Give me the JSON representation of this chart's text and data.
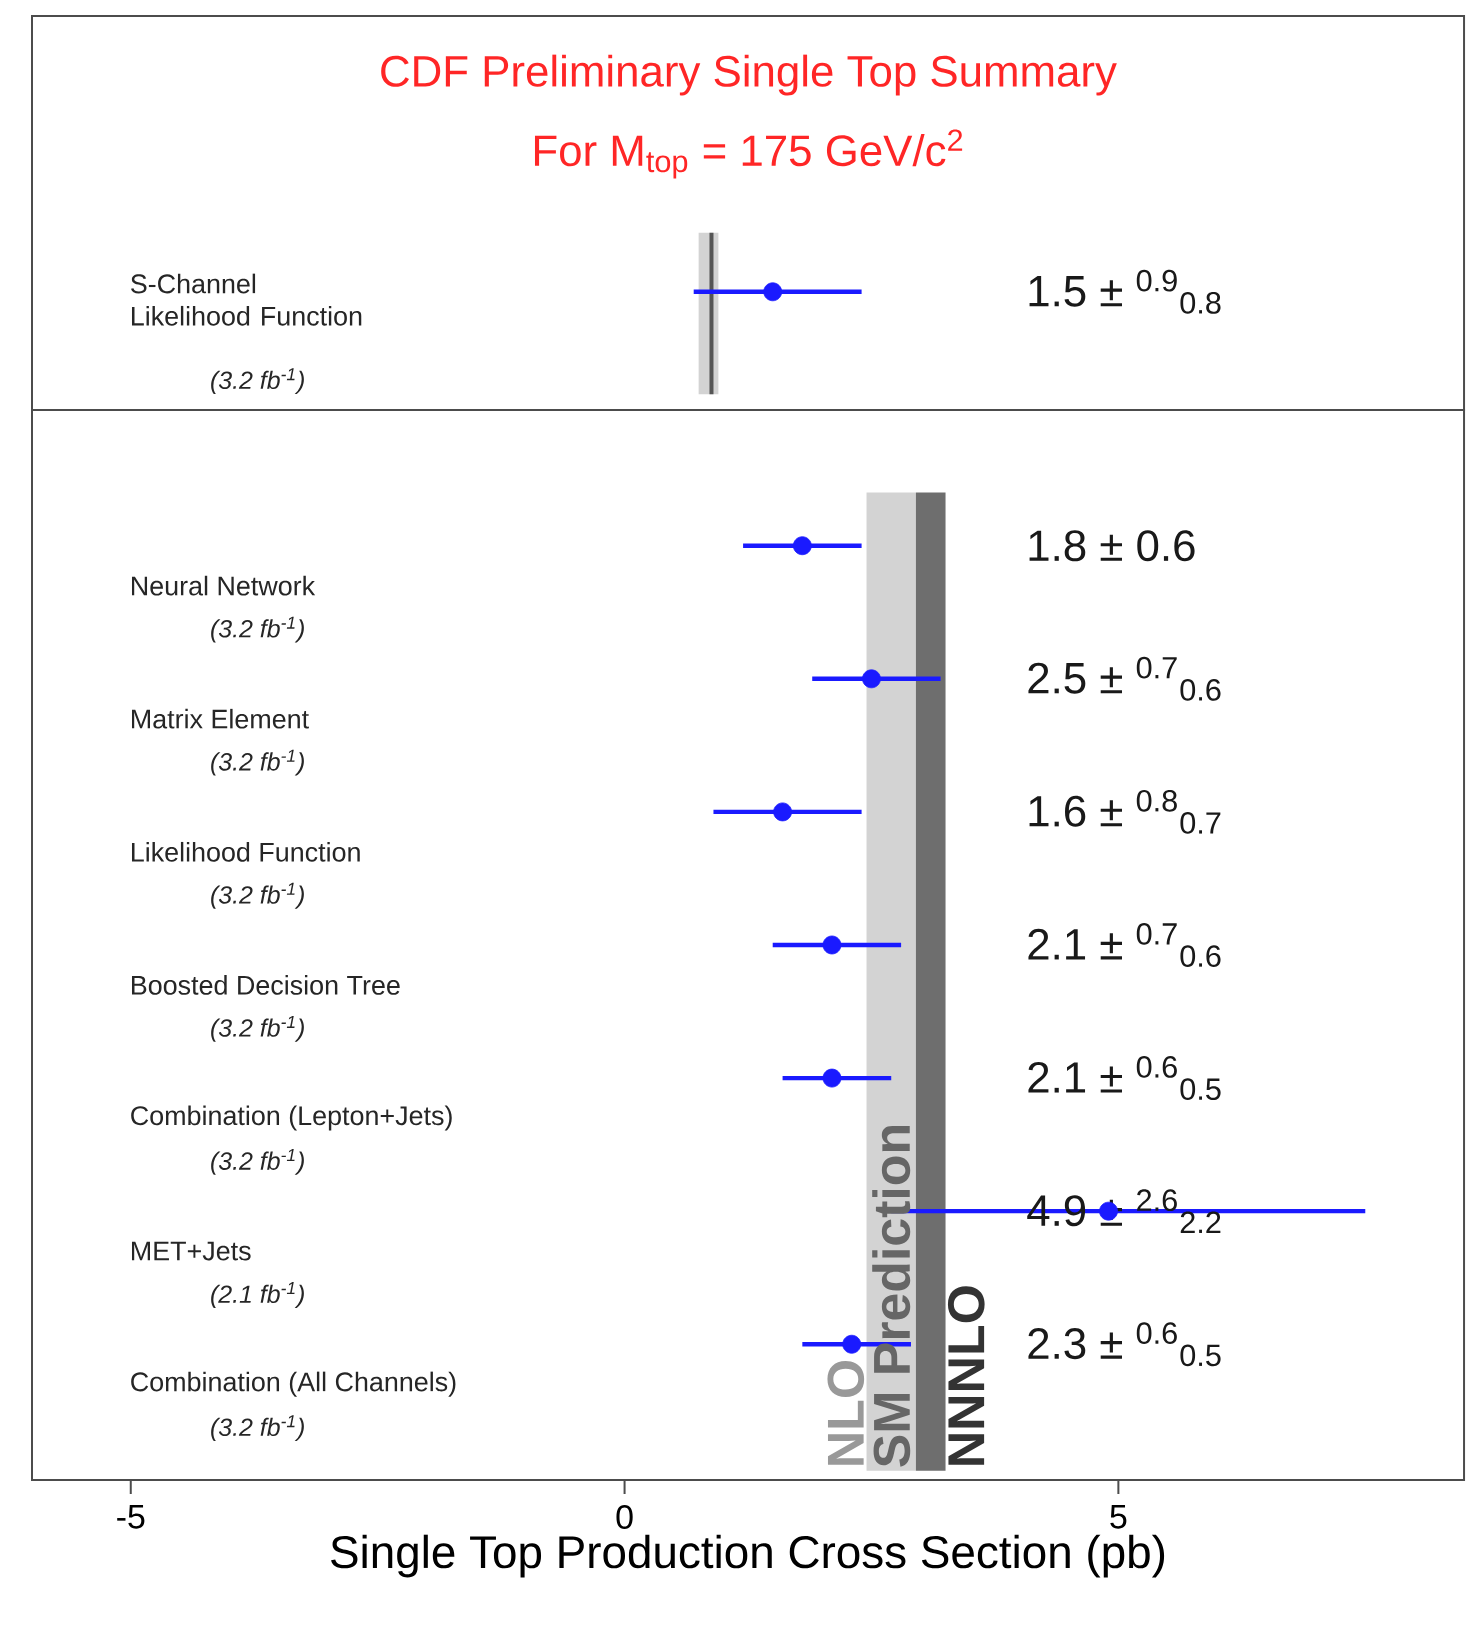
{
  "chart_data": [
    {
      "type": "scatter",
      "orientation": "horizontal",
      "title": "CDF Preliminary Single Top Summary",
      "subtitle": "For M$_{top}$ = 175 GeV/c$^{2}$",
      "categories": [
        "S-Channel Likelihood Function"
      ],
      "values": [
        1.5
      ],
      "errors": [
        [
          0.7,
          2.4
        ]
      ],
      "color": "#1a1aff",
      "marker": "circle",
      "annotations": [
        "(3.2 fb$^{-1}$)",
        "1.5 ± $^{0.9}$$_{0.8}$"
      ],
      "bands": [
        {
          "axis": "x",
          "from": 0.75,
          "to": 0.95,
          "color": "#d3d3d3"
        }
      ],
      "ref_lines": [
        {
          "axis": "x",
          "value": 0.88,
          "color": "#555555"
        }
      ],
      "xlim": [
        -6,
        8.5
      ],
      "tick_labels": false
    },
    {
      "type": "scatter",
      "orientation": "horizontal",
      "xlabel": "Single Top Production Cross Section (pb)",
      "categories": [
        "Neural Network",
        "Matrix Element",
        "Likelihood Function",
        "Boosted Decision Tree",
        "Combination (Lepton+Jets)",
        "MET+Jets",
        "Combination (All Channels)"
      ],
      "values": [
        1.8,
        2.5,
        1.6,
        2.1,
        2.1,
        4.9,
        2.3
      ],
      "errors": [
        [
          1.2,
          2.4
        ],
        [
          1.9,
          3.2
        ],
        [
          0.9,
          2.4
        ],
        [
          1.5,
          2.8
        ],
        [
          1.6,
          2.7
        ],
        [
          2.7,
          7.5
        ],
        [
          1.8,
          2.9
        ]
      ],
      "color": "#1a1aff",
      "marker": "circle",
      "annotations": [
        "(3.2 fb$^{-1}$)",
        "(3.2 fb$^{-1}$)",
        "(3.2 fb$^{-1}$)",
        "(3.2 fb$^{-1}$)",
        "(3.2 fb$^{-1}$)",
        "(2.1 fb$^{-1}$)",
        "(3.2 fb$^{-1}$)",
        "1.8 ± 0.6",
        "2.5 ± $^{0.7}$$_{0.6}$",
        "1.6 ± $^{0.8}$$_{0.7}$",
        "2.1 ± $^{0.7}$$_{0.6}$",
        "2.1 ± $^{0.6}$$_{0.5}$",
        "4.9 ± $^{2.6}$$_{2.2}$",
        "2.3 ± $^{0.6}$$_{0.5}$",
        "SM Prediction"
      ],
      "bands": [
        {
          "axis": "x",
          "from": 2.45,
          "to": 2.95,
          "label": "NLO",
          "color": "#d3d3d3"
        },
        {
          "axis": "x",
          "from": 2.95,
          "to": 3.25,
          "label": "NNNLO",
          "color": "#6e6e6e"
        }
      ],
      "xlim": [
        -6,
        8.5
      ],
      "xticks": [
        -5,
        0,
        5
      ]
    }
  ]
}
